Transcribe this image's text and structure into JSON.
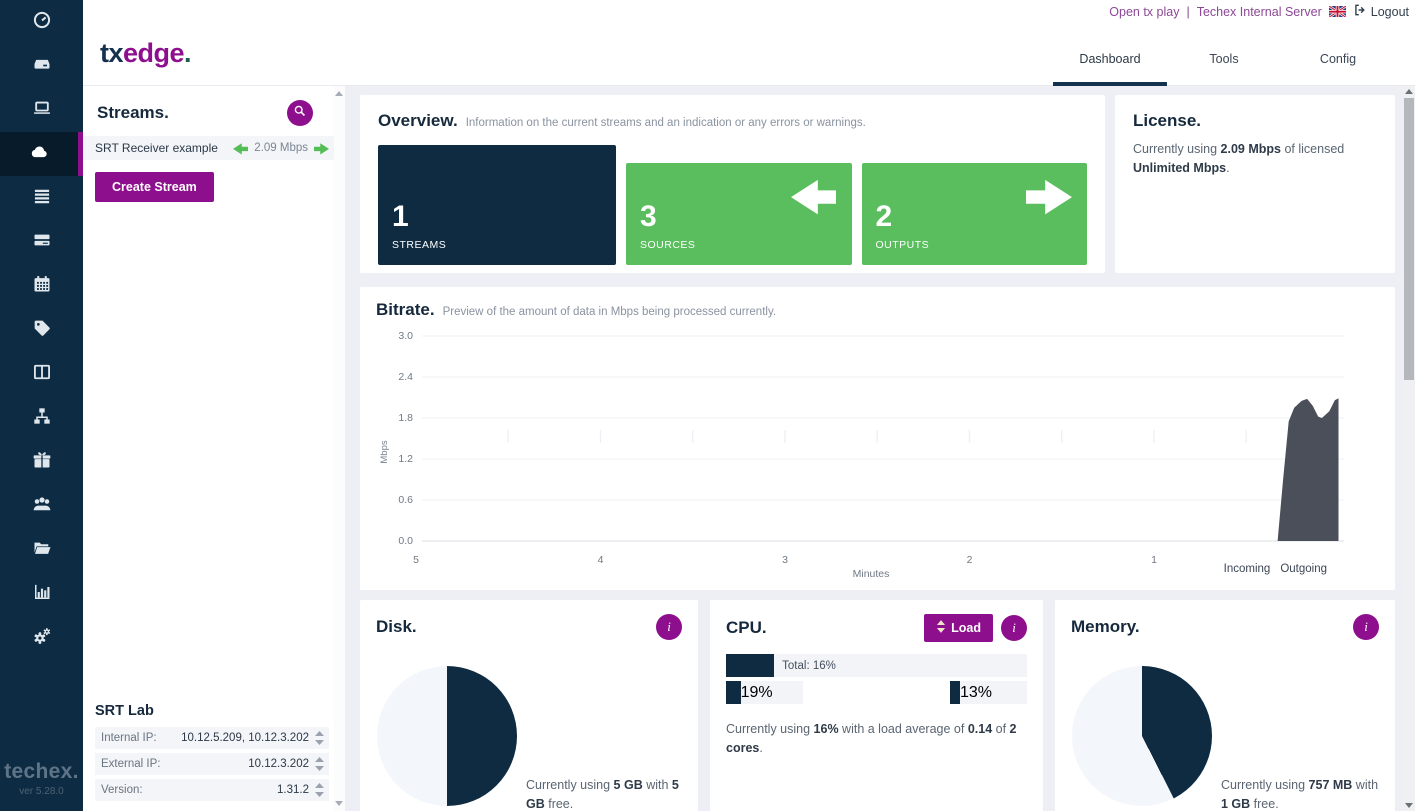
{
  "header": {
    "links": {
      "open_tx_play": "Open tx play",
      "separator": "|",
      "server_name": "Techex Internal Server",
      "logout_label": "Logout"
    },
    "tabs": [
      {
        "label": "Dashboard",
        "active": true
      },
      {
        "label": "Tools",
        "active": false
      },
      {
        "label": "Config",
        "active": false
      }
    ]
  },
  "logo": {
    "tx": "tx",
    "edge": "edge",
    "dot": "."
  },
  "sidebar": {
    "icons": [
      "gauge",
      "hard-drive",
      "laptop",
      "cloud",
      "table",
      "server-stack",
      "calendar",
      "tag",
      "columns",
      "sitemap",
      "gift",
      "users",
      "folder-open",
      "bar-chart",
      "cogs"
    ],
    "active_icon": "cloud",
    "brand": "techex.",
    "version": "ver 5.28.0"
  },
  "streams_panel": {
    "title": "Streams.",
    "streams": [
      {
        "name": "SRT Receiver example",
        "bitrate": "2.09 Mbps"
      }
    ],
    "create_button": "Create Stream"
  },
  "server_info": {
    "title": "SRT Lab",
    "rows": [
      {
        "label": "Internal IP:",
        "value": "10.12.5.209, 10.12.3.202"
      },
      {
        "label": "External IP:",
        "value": "10.12.3.202"
      },
      {
        "label": "Version:",
        "value": "1.31.2"
      }
    ]
  },
  "overview": {
    "title": "Overview.",
    "subtitle": "Information on the current streams and an indication or any errors or warnings.",
    "cards": [
      {
        "value": "1",
        "label": "STREAMS"
      },
      {
        "value": "3",
        "label": "SOURCES"
      },
      {
        "value": "2",
        "label": "OUTPUTS"
      }
    ]
  },
  "license": {
    "title": "License.",
    "parts": [
      "Currently using ",
      "2.09 Mbps",
      " of licensed ",
      "Unlimited Mbps",
      "."
    ]
  },
  "bitrate_panel": {
    "title": "Bitrate.",
    "subtitle": "Preview of the amount of data in Mbps being processed currently."
  },
  "chart_data": {
    "type": "area",
    "title": "Bitrate.",
    "ylabel": "Mbps",
    "xlabel": "Minutes",
    "ytick_labels": [
      "3.0",
      "2.4",
      "1.8",
      "1.2",
      "0.6",
      "0.0"
    ],
    "xtick_labels": [
      "5",
      "4",
      "3",
      "2",
      "1"
    ],
    "ylim": [
      0,
      3
    ],
    "xlim_minutes_ago": [
      5,
      0
    ],
    "grid": "horizontal",
    "legend": [
      "Incoming",
      "Outgoing"
    ],
    "legend_position": "bottom-right",
    "series": [
      {
        "name": "Incoming",
        "color": "#4b4f59",
        "points_minutes_mbps": [
          [
            0.33,
            0
          ],
          [
            0.3,
            0.9
          ],
          [
            0.27,
            1.75
          ],
          [
            0.24,
            1.95
          ],
          [
            0.2,
            2.05
          ],
          [
            0.17,
            2.08
          ],
          [
            0.14,
            1.98
          ],
          [
            0.11,
            1.82
          ],
          [
            0.09,
            1.8
          ],
          [
            0.05,
            1.9
          ],
          [
            0.02,
            2.06
          ],
          [
            0,
            2.09
          ]
        ]
      }
    ]
  },
  "disk": {
    "title": "Disk.",
    "used_percent": 50,
    "parts": [
      "Currently using ",
      "5 GB",
      " with ",
      "5 GB",
      " free."
    ]
  },
  "cpu": {
    "title": "CPU.",
    "load_button": "Load",
    "total_label": "Total: 16%",
    "total_percent": 16,
    "cores": [
      {
        "label": "19%",
        "percent": 19
      },
      {
        "label": "13%",
        "percent": 13
      }
    ],
    "summary": [
      "Currently using ",
      "16%",
      " with a load average of ",
      "0.14",
      " of ",
      "2 cores",
      "."
    ]
  },
  "memory": {
    "title": "Memory.",
    "used_percent": 42.5,
    "parts": [
      "Currently using ",
      "757 MB",
      " with ",
      "1 GB",
      " free."
    ]
  }
}
